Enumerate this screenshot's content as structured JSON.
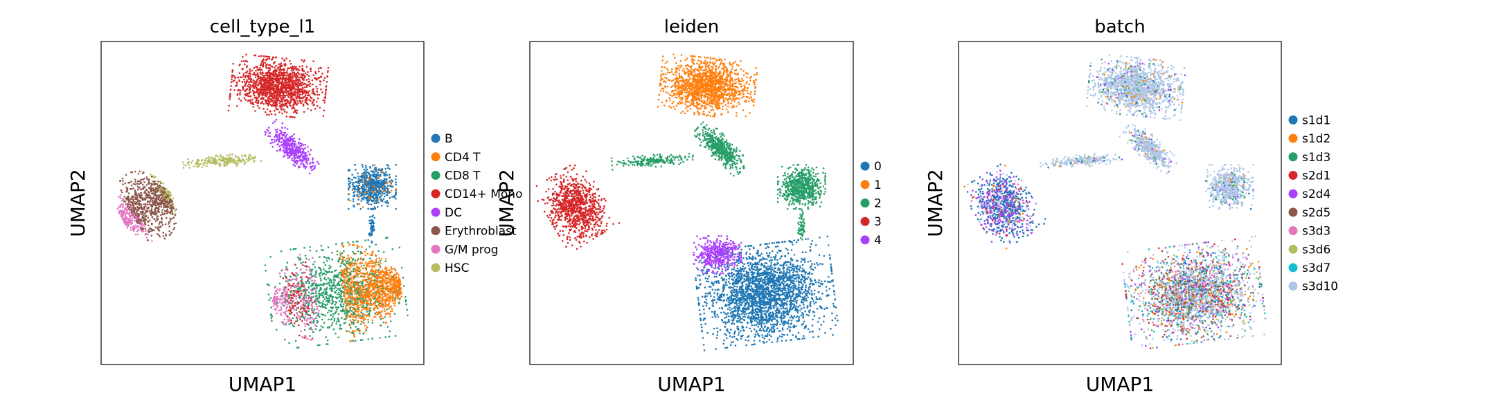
{
  "chart_data": [
    {
      "type": "scatter",
      "title": "cell_type_l1",
      "xlabel": "UMAP1",
      "ylabel": "UMAP2",
      "legend_position": "right",
      "series": [
        {
          "name": "B",
          "color": "#1f77b4"
        },
        {
          "name": "CD4 T",
          "color": "#ff7f0e"
        },
        {
          "name": "CD8 T",
          "color": "#279e68"
        },
        {
          "name": "CD14+ Mono",
          "color": "#d62728"
        },
        {
          "name": "DC",
          "color": "#aa40fc"
        },
        {
          "name": "Erythroblast",
          "color": "#8c564b"
        },
        {
          "name": "G/M prog",
          "color": "#e377c2"
        },
        {
          "name": "HSC",
          "color": "#b5bd61"
        }
      ]
    },
    {
      "type": "scatter",
      "title": "leiden",
      "xlabel": "UMAP1",
      "ylabel": "UMAP2",
      "legend_position": "right",
      "series": [
        {
          "name": "0",
          "color": "#1f77b4"
        },
        {
          "name": "1",
          "color": "#ff7f0e"
        },
        {
          "name": "2",
          "color": "#279e68"
        },
        {
          "name": "3",
          "color": "#d62728"
        },
        {
          "name": "4",
          "color": "#aa40fc"
        }
      ]
    },
    {
      "type": "scatter",
      "title": "batch",
      "xlabel": "UMAP1",
      "ylabel": "UMAP2",
      "legend_position": "right",
      "series": [
        {
          "name": "s1d1",
          "color": "#1f77b4"
        },
        {
          "name": "s1d2",
          "color": "#ff7f0e"
        },
        {
          "name": "s1d3",
          "color": "#279e68"
        },
        {
          "name": "s2d1",
          "color": "#d62728"
        },
        {
          "name": "s2d4",
          "color": "#aa40fc"
        },
        {
          "name": "s2d5",
          "color": "#8c564b"
        },
        {
          "name": "s3d3",
          "color": "#e377c2"
        },
        {
          "name": "s3d6",
          "color": "#b5bd61"
        },
        {
          "name": "s3d7",
          "color": "#17becf"
        },
        {
          "name": "s3d10",
          "color": "#aec7e8"
        }
      ]
    }
  ]
}
